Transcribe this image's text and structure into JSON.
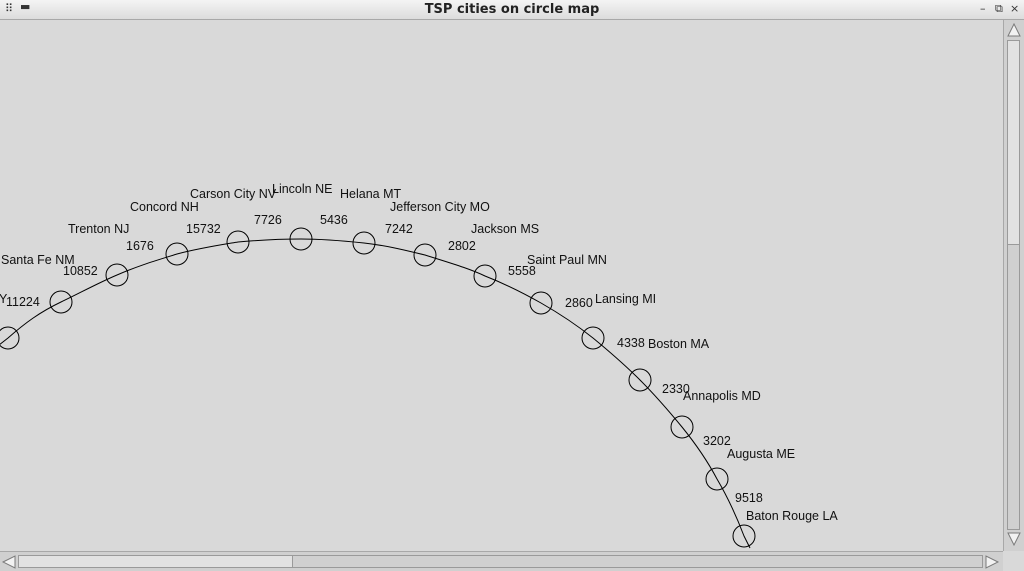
{
  "window": {
    "title": "TSP cities on circle map",
    "menu_icon": "grip-icon",
    "minimize_symbol": "–",
    "restore_symbol": "⧉",
    "close_symbol": "×"
  },
  "map": {
    "truncated_left_label": "Y",
    "cities": [
      {
        "name": "",
        "distance": "11224"
      },
      {
        "name": "Santa Fe NM",
        "distance": "10852"
      },
      {
        "name": "Trenton NJ",
        "distance": "1676"
      },
      {
        "name": "Concord NH",
        "distance": "15732"
      },
      {
        "name": "Carson City NV",
        "distance": "7726"
      },
      {
        "name": "Lincoln NE",
        "distance": "5436"
      },
      {
        "name": "Helana MT",
        "distance": "7242"
      },
      {
        "name": "Jefferson City MO",
        "distance": "2802"
      },
      {
        "name": "Jackson MS",
        "distance": "5558"
      },
      {
        "name": "Saint Paul MN",
        "distance": "2860"
      },
      {
        "name": "Lansing MI",
        "distance": "4338"
      },
      {
        "name": "Boston MA",
        "distance": "2330"
      },
      {
        "name": "Annapolis MD",
        "distance": "3202"
      },
      {
        "name": "Augusta ME",
        "distance": "9518"
      },
      {
        "name": "Baton Rouge LA",
        "distance": ""
      }
    ]
  }
}
